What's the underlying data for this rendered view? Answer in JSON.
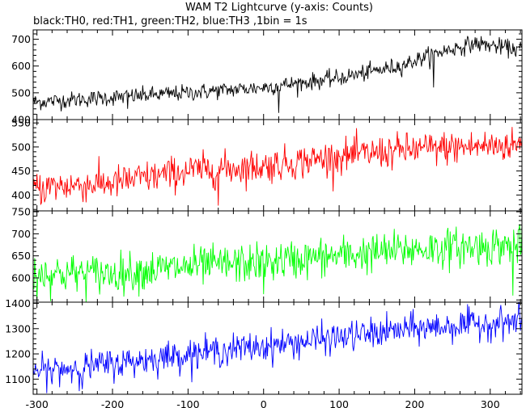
{
  "title": "WAM T2 Lightcurve (y-axis: Counts)",
  "subtitle": "black:TH0, red:TH1, green:TH2, blue:TH3 ,1bin = 1s",
  "chart_data": {
    "type": "line",
    "x_range": [
      -305,
      342
    ],
    "x_ticks": [
      -300,
      -200,
      -100,
      0,
      100,
      200,
      300
    ],
    "x_step": 1,
    "panels": [
      {
        "color": "#000000",
        "ylim": [
          400,
          735
        ],
        "y_ticks": [
          400,
          500,
          600,
          700
        ],
        "trend_knots": [
          [
            -305,
            465
          ],
          [
            -100,
            500
          ],
          [
            0,
            520
          ],
          [
            100,
            555
          ],
          [
            180,
            600
          ],
          [
            230,
            650
          ],
          [
            280,
            685
          ],
          [
            342,
            660
          ]
        ],
        "noise_amplitude": 28,
        "spikes": [
          [
            225,
            520
          ],
          [
            -180,
            440
          ],
          [
            20,
            425
          ]
        ]
      },
      {
        "color": "#ff0000",
        "ylim": [
          367,
          557
        ],
        "y_ticks": [
          400,
          450,
          500,
          550
        ],
        "trend_knots": [
          [
            -305,
            415
          ],
          [
            -200,
            425
          ],
          [
            -100,
            450
          ],
          [
            0,
            460
          ],
          [
            100,
            480
          ],
          [
            200,
            495
          ],
          [
            342,
            505
          ]
        ],
        "noise_amplitude": 32,
        "spikes": [
          [
            -60,
            378
          ],
          [
            -290,
            385
          ]
        ]
      },
      {
        "color": "#00ff00",
        "ylim": [
          545,
          752
        ],
        "y_ticks": [
          600,
          650,
          700,
          750
        ],
        "trend_knots": [
          [
            -305,
            610
          ],
          [
            -200,
            610
          ],
          [
            -100,
            625
          ],
          [
            0,
            635
          ],
          [
            100,
            650
          ],
          [
            200,
            665
          ],
          [
            342,
            675
          ]
        ],
        "noise_amplitude": 40,
        "spikes": [
          [
            -300,
            550
          ],
          [
            0,
            563
          ],
          [
            330,
            560
          ]
        ]
      },
      {
        "color": "#0000ff",
        "ylim": [
          1040,
          1405
        ],
        "y_ticks": [
          1100,
          1200,
          1300,
          1400
        ],
        "trend_knots": [
          [
            -305,
            1130
          ],
          [
            -200,
            1160
          ],
          [
            -100,
            1200
          ],
          [
            0,
            1230
          ],
          [
            100,
            1265
          ],
          [
            200,
            1300
          ],
          [
            342,
            1330
          ]
        ],
        "noise_amplitude": 55,
        "spikes": [
          [
            -240,
            1060
          ],
          [
            -280,
            1080
          ]
        ]
      }
    ]
  }
}
